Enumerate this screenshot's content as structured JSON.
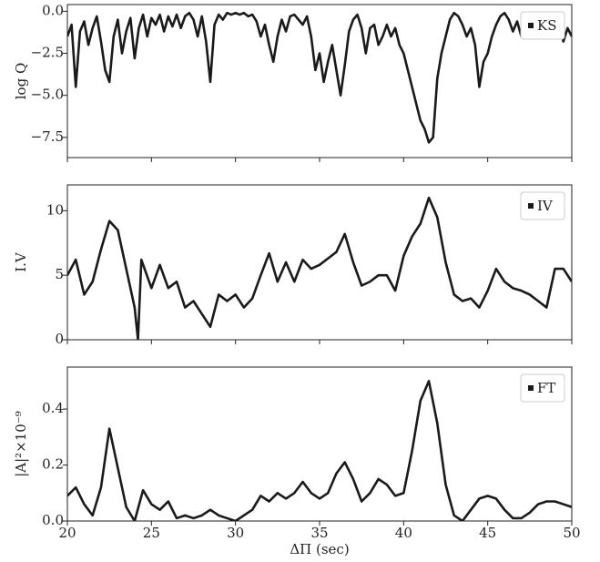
{
  "chart_data": [
    {
      "type": "line",
      "ylabel": "log Q",
      "xlim": [
        20,
        50
      ],
      "ylim": [
        -8.7,
        0.4
      ],
      "yticks": [
        {
          "value": -7.5,
          "label": "−7.5"
        },
        {
          "value": -5,
          "label": "−5.0"
        },
        {
          "value": -2.5,
          "label": "−2.5"
        },
        {
          "value": 0,
          "label": "0.0"
        }
      ],
      "legend": "upper right",
      "x": [
        20,
        20.25,
        20.5,
        20.75,
        21,
        21.25,
        21.5,
        21.75,
        22,
        22.25,
        22.5,
        22.75,
        23,
        23.25,
        23.5,
        23.75,
        24,
        24.25,
        24.5,
        24.75,
        25,
        25.25,
        25.5,
        25.75,
        26,
        26.25,
        26.5,
        26.75,
        27,
        27.25,
        27.5,
        27.75,
        28,
        28.25,
        28.5,
        28.75,
        29,
        29.25,
        29.5,
        29.75,
        30,
        30.25,
        30.5,
        30.75,
        31,
        31.25,
        31.5,
        31.75,
        32,
        32.25,
        32.5,
        32.75,
        33,
        33.25,
        33.5,
        33.75,
        34,
        34.25,
        34.5,
        34.75,
        35,
        35.25,
        35.5,
        35.75,
        36,
        36.25,
        36.5,
        36.75,
        37,
        37.25,
        37.5,
        37.75,
        38,
        38.25,
        38.5,
        38.75,
        39,
        39.25,
        39.5,
        39.75,
        40,
        40.25,
        40.5,
        40.75,
        41,
        41.25,
        41.5,
        41.75,
        42,
        42.25,
        42.5,
        42.75,
        43,
        43.25,
        43.5,
        43.75,
        44,
        44.25,
        44.5,
        44.75,
        45,
        45.25,
        45.5,
        45.75,
        46,
        46.25,
        46.5,
        46.75,
        47,
        47.25,
        47.5,
        47.75,
        48,
        48.25,
        48.5,
        48.75,
        49,
        49.25,
        49.5,
        49.75,
        50
      ],
      "series": [
        {
          "name": "KS",
          "color": "#1a1a1a",
          "values": [
            -1.5,
            -0.8,
            -4.5,
            -1.2,
            -0.6,
            -2.0,
            -1.0,
            -0.3,
            -1.8,
            -3.5,
            -4.2,
            -1.5,
            -0.5,
            -2.5,
            -1.2,
            -0.4,
            -2.8,
            -1.0,
            -0.2,
            -1.5,
            -0.4,
            -0.8,
            -0.2,
            -1.2,
            -0.3,
            -0.9,
            -0.2,
            -1.0,
            -0.3,
            -0.1,
            -0.5,
            -1.5,
            -0.3,
            -1.8,
            -4.2,
            -0.8,
            -0.2,
            -0.5,
            -0.1,
            -0.2,
            -0.1,
            -0.2,
            -0.1,
            -0.3,
            -0.2,
            -0.6,
            -1.5,
            -0.8,
            -2.0,
            -3.0,
            -1.5,
            -0.5,
            -1.2,
            -0.3,
            -0.2,
            -0.5,
            -0.8,
            -0.3,
            -1.5,
            -3.5,
            -2.5,
            -4.2,
            -3.0,
            -2.0,
            -3.5,
            -5.0,
            -3.2,
            -1.2,
            -0.5,
            -0.2,
            -1.0,
            -2.5,
            -1.0,
            -0.8,
            -2.0,
            -1.5,
            -0.8,
            -1.5,
            -1.0,
            -2.0,
            -2.5,
            -3.5,
            -4.5,
            -5.5,
            -6.5,
            -7.0,
            -7.8,
            -7.5,
            -4.0,
            -2.5,
            -1.5,
            -0.5,
            -0.1,
            -0.3,
            -0.8,
            -1.5,
            -1.0,
            -2.0,
            -4.5,
            -3.0,
            -2.5,
            -1.5,
            -0.8,
            -0.3,
            -0.1,
            -0.5,
            -1.2,
            -0.6,
            -1.5,
            -0.8,
            -1.2,
            -0.3,
            -0.8,
            -0.2,
            -0.6,
            -0.3,
            -1.0,
            -0.5,
            -1.8,
            -1.0,
            -1.5
          ]
        }
      ]
    },
    {
      "type": "line",
      "ylabel": "I.V",
      "xlim": [
        20,
        50
      ],
      "ylim": [
        0,
        12
      ],
      "yticks": [
        0,
        5,
        10
      ],
      "legend": "upper right",
      "x": [
        20,
        20.5,
        21,
        21.5,
        22,
        22.5,
        23,
        23.5,
        24,
        24.2,
        24.4,
        25,
        25.5,
        26,
        26.5,
        27,
        27.5,
        28,
        28.5,
        29,
        29.5,
        30,
        30.5,
        31,
        31.5,
        32,
        32.5,
        33,
        33.5,
        34,
        34.5,
        35,
        35.5,
        36,
        36.5,
        37,
        37.5,
        38,
        38.5,
        39,
        39.5,
        40,
        40.5,
        41,
        41.5,
        42,
        42.5,
        43,
        43.5,
        44,
        44.5,
        45,
        45.5,
        46,
        46.5,
        47,
        47.5,
        48,
        48.5,
        49,
        49.5,
        50
      ],
      "series": [
        {
          "name": "IV",
          "color": "#1a1a1a",
          "values": [
            5.0,
            6.2,
            3.5,
            4.5,
            7.0,
            9.2,
            8.5,
            5.5,
            2.5,
            0,
            6.2,
            4.0,
            5.8,
            4.0,
            4.5,
            2.5,
            3.0,
            2.0,
            1.0,
            3.5,
            3.0,
            3.5,
            2.5,
            3.2,
            5.0,
            6.7,
            4.5,
            6.0,
            4.5,
            6.2,
            5.5,
            5.8,
            6.3,
            6.8,
            8.2,
            6.0,
            4.2,
            4.5,
            5.0,
            5.0,
            3.8,
            6.5,
            8.0,
            9.0,
            11.0,
            9.5,
            6.0,
            3.5,
            3.0,
            3.2,
            2.5,
            3.8,
            5.5,
            4.5,
            4.0,
            3.8,
            3.5,
            3.0,
            2.5,
            5.5,
            5.5,
            4.5
          ]
        }
      ]
    },
    {
      "type": "line",
      "ylabel": "|A|²×10⁻⁹",
      "xlabel": "ΔΠ (sec)",
      "xlim": [
        20,
        50
      ],
      "ylim": [
        0,
        0.55
      ],
      "yticks": [
        {
          "value": 0,
          "label": "0.0"
        },
        0.2,
        0.4
      ],
      "xticks": [
        20,
        25,
        30,
        35,
        40,
        45,
        50
      ],
      "legend": "upper right",
      "x": [
        20,
        20.5,
        21,
        21.5,
        22,
        22.5,
        23,
        23.5,
        24,
        24.5,
        25,
        25.5,
        26,
        26.5,
        27,
        27.5,
        28,
        28.5,
        29,
        29.5,
        30,
        30.5,
        31,
        31.5,
        32,
        32.5,
        33,
        33.5,
        34,
        34.5,
        35,
        35.5,
        36,
        36.5,
        37,
        37.5,
        38,
        38.5,
        39,
        39.5,
        40,
        40.5,
        41,
        41.5,
        42,
        42.5,
        43,
        43.5,
        44,
        44.5,
        45,
        45.5,
        46,
        46.5,
        47,
        47.5,
        48,
        48.5,
        49,
        49.5,
        50
      ],
      "series": [
        {
          "name": "FT",
          "color": "#1a1a1a",
          "values": [
            0.09,
            0.12,
            0.06,
            0.02,
            0.12,
            0.33,
            0.19,
            0.05,
            0.0,
            0.11,
            0.06,
            0.04,
            0.07,
            0.01,
            0.02,
            0.01,
            0.02,
            0.04,
            0.02,
            0.01,
            0.0,
            0.02,
            0.04,
            0.09,
            0.07,
            0.1,
            0.08,
            0.1,
            0.14,
            0.1,
            0.08,
            0.1,
            0.17,
            0.21,
            0.15,
            0.07,
            0.1,
            0.15,
            0.13,
            0.09,
            0.1,
            0.25,
            0.43,
            0.5,
            0.35,
            0.13,
            0.02,
            0.0,
            0.04,
            0.08,
            0.09,
            0.08,
            0.04,
            0.01,
            0.01,
            0.03,
            0.06,
            0.07,
            0.07,
            0.06,
            0.05
          ]
        }
      ]
    }
  ]
}
